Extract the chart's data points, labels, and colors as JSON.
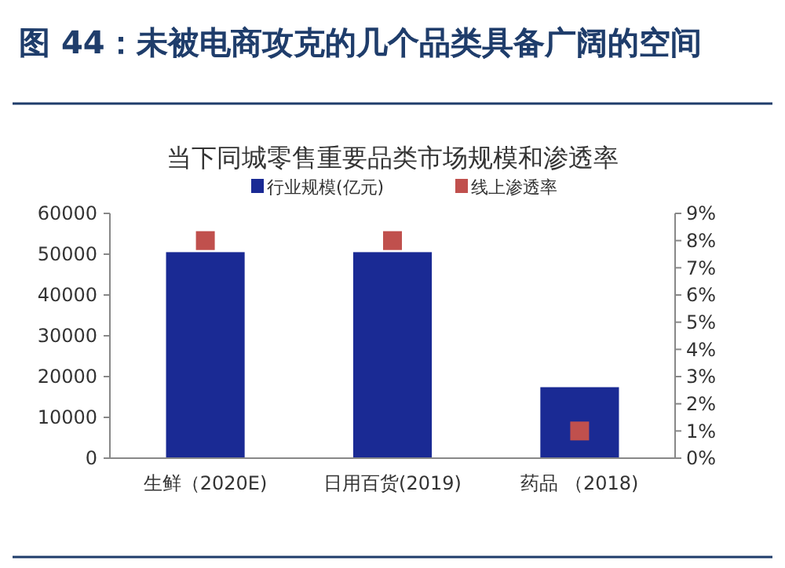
{
  "chart_data": {
    "type": "bar",
    "title": "图 44：未被电商攻克的几个品类具备广阔的空间",
    "subtitle": "当下同城零售重要品类市场规模和渗透率",
    "categories": [
      "生鲜（2020E)",
      "日用百货(2019)",
      "药品 （2018)"
    ],
    "series": [
      {
        "name": "行业规模(亿元)",
        "color": "#1a2a94",
        "values": [
          50500,
          50500,
          17400
        ]
      },
      {
        "name": "线上渗透率",
        "color": "#c0504d",
        "type": "scatter",
        "axis": "y2",
        "marker": "square",
        "values": [
          8,
          8,
          1
        ]
      }
    ],
    "ylim": [
      0,
      60000
    ],
    "yticks": [
      0,
      10000,
      20000,
      30000,
      40000,
      50000,
      60000
    ],
    "y2lim": [
      0,
      9
    ],
    "y2ticks": [
      {
        "value": 0,
        "label": "0%"
      },
      {
        "value": 1,
        "label": "1%"
      },
      {
        "value": 2,
        "label": "2%"
      },
      {
        "value": 3,
        "label": "3%"
      },
      {
        "value": 4,
        "label": "4%"
      },
      {
        "value": 5,
        "label": "5%"
      },
      {
        "value": 6,
        "label": "6%"
      },
      {
        "value": 7,
        "label": "7%"
      },
      {
        "value": 8,
        "label": "8%"
      },
      {
        "value": 9,
        "label": "9%"
      }
    ],
    "legend": "top",
    "grid": false
  }
}
